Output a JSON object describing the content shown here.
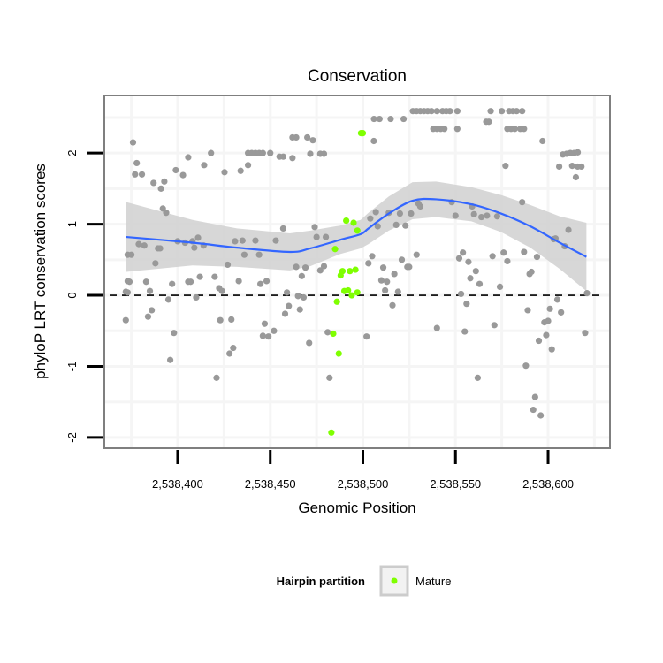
{
  "chart_data": {
    "type": "scatter",
    "title": "Conservation",
    "xlabel": "Genomic Position",
    "ylabel": "phyloP LRT conservation scores",
    "xlim": [
      2538360.4,
      2538633.4
    ],
    "ylim": [
      -2.15,
      2.81
    ],
    "x_ticks": [
      2538400,
      2538450,
      2538500,
      2538550,
      2538600
    ],
    "x_tick_labels": [
      "2,538,400",
      "2,538,450",
      "2,538,500",
      "2,538,550",
      "2,538,600"
    ],
    "y_ticks": [
      -2,
      -1,
      0,
      1,
      2
    ],
    "y_tick_labels": [
      "-2",
      "-1",
      "0",
      "1",
      "2"
    ],
    "grid": true,
    "reference_line": {
      "y": 0,
      "style": "dashed"
    },
    "legend": {
      "title": "Hairpin partition",
      "position": "bottom",
      "entries": [
        {
          "label": "Mature",
          "color": "#7fff00"
        }
      ]
    },
    "colors": {
      "other": "#999999",
      "mature": "#7fff00",
      "smooth": "#3366ff",
      "band": "#d3d3d3",
      "panel_border": "#7f7f7f"
    },
    "series": [
      {
        "name": "Other",
        "points": [
          [
            2538372,
            -0.35
          ],
          [
            2538372,
            0.05
          ],
          [
            2538373,
            0.57
          ],
          [
            2538373,
            0.2
          ],
          [
            2538375.9,
            2.15
          ],
          [
            2538377.9,
            1.86
          ],
          [
            2538377,
            1.7
          ],
          [
            2538380.7,
            1.7
          ],
          [
            2538387,
            1.58
          ],
          [
            2538392.8,
            1.6
          ],
          [
            2538391,
            1.5
          ],
          [
            2538399,
            1.76
          ],
          [
            2538402.9,
            1.69
          ],
          [
            2538405.7,
            1.94
          ],
          [
            2538414.3,
            1.83
          ],
          [
            2538418,
            2.0
          ],
          [
            2538425.3,
            1.73
          ],
          [
            2538434,
            1.75
          ],
          [
            2538438,
            1.83
          ],
          [
            2538438,
            2.0
          ],
          [
            2538440,
            2.0
          ],
          [
            2538442,
            2.0
          ],
          [
            2538444,
            2.0
          ],
          [
            2538446,
            2.0
          ],
          [
            2538450,
            2.0
          ],
          [
            2538455,
            1.95
          ],
          [
            2538457,
            1.95
          ],
          [
            2538462,
            1.93
          ],
          [
            2538462,
            2.22
          ],
          [
            2538464,
            2.22
          ],
          [
            2538470,
            2.22
          ],
          [
            2538473,
            2.18
          ],
          [
            2538471.6,
            1.99
          ],
          [
            2538477,
            1.99
          ],
          [
            2538479,
            1.99
          ],
          [
            2538392,
            1.22
          ],
          [
            2538393.8,
            1.16
          ],
          [
            2538379,
            0.72
          ],
          [
            2538382,
            0.7
          ],
          [
            2538375,
            0.57
          ],
          [
            2538389.4,
            0.66
          ],
          [
            2538390.5,
            0.66
          ],
          [
            2538388,
            0.45
          ],
          [
            2538400,
            0.76
          ],
          [
            2538404,
            0.74
          ],
          [
            2538408,
            0.76
          ],
          [
            2538411,
            0.81
          ],
          [
            2538409,
            0.67
          ],
          [
            2538414,
            0.7
          ],
          [
            2538431,
            0.76
          ],
          [
            2538435,
            0.77
          ],
          [
            2538442,
            0.77
          ],
          [
            2538436,
            0.57
          ],
          [
            2538444,
            0.57
          ],
          [
            2538453,
            0.77
          ],
          [
            2538457,
            0.94
          ],
          [
            2538474,
            0.96
          ],
          [
            2538475,
            0.82
          ],
          [
            2538480,
            0.82
          ],
          [
            2538427,
            0.43
          ],
          [
            2538464,
            0.4
          ],
          [
            2538469,
            0.39
          ],
          [
            2538467,
            0.27
          ],
          [
            2538477,
            0.35
          ],
          [
            2538479,
            0.41
          ],
          [
            2538374,
            0.19
          ],
          [
            2538383,
            0.19
          ],
          [
            2538397,
            0.16
          ],
          [
            2538405.7,
            0.19
          ],
          [
            2538407,
            0.19
          ],
          [
            2538412,
            0.26
          ],
          [
            2538420,
            0.26
          ],
          [
            2538433,
            0.2
          ],
          [
            2538444.7,
            0.16
          ],
          [
            2538448,
            0.2
          ],
          [
            2538373,
            0.04
          ],
          [
            2538385,
            0.06
          ],
          [
            2538422.4,
            0.1
          ],
          [
            2538424,
            0.06
          ],
          [
            2538459,
            0.04
          ],
          [
            2538465,
            -0.01
          ],
          [
            2538468,
            -0.03
          ],
          [
            2538410,
            -0.03
          ],
          [
            2538395,
            -0.06
          ],
          [
            2538384,
            -0.3
          ],
          [
            2538386,
            -0.21
          ],
          [
            2538458,
            -0.26
          ],
          [
            2538460,
            -0.15
          ],
          [
            2538466,
            -0.2
          ],
          [
            2538423,
            -0.35
          ],
          [
            2538429,
            -0.34
          ],
          [
            2538447,
            -0.4
          ],
          [
            2538446,
            -0.57
          ],
          [
            2538449,
            -0.58
          ],
          [
            2538452,
            -0.5
          ],
          [
            2538398,
            -0.53
          ],
          [
            2538471,
            -0.67
          ],
          [
            2538481,
            -0.52
          ],
          [
            2538428,
            -0.82
          ],
          [
            2538430,
            -0.74
          ],
          [
            2538396,
            -0.91
          ],
          [
            2538421,
            -1.16
          ],
          [
            2538482,
            -1.16
          ],
          [
            2538505.9,
            2.17
          ],
          [
            2538506,
            2.48
          ],
          [
            2538509,
            2.48
          ],
          [
            2538515,
            2.48
          ],
          [
            2538522,
            2.48
          ],
          [
            2538527,
            2.59
          ],
          [
            2538529,
            2.59
          ],
          [
            2538531,
            2.59
          ],
          [
            2538533,
            2.59
          ],
          [
            2538535,
            2.59
          ],
          [
            2538537,
            2.59
          ],
          [
            2538540,
            2.59
          ],
          [
            2538543,
            2.59
          ],
          [
            2538545,
            2.59
          ],
          [
            2538547,
            2.59
          ],
          [
            2538551,
            2.59
          ],
          [
            2538569,
            2.59
          ],
          [
            2538575,
            2.59
          ],
          [
            2538579,
            2.59
          ],
          [
            2538581,
            2.59
          ],
          [
            2538583,
            2.59
          ],
          [
            2538586,
            2.59
          ],
          [
            2538566.6,
            2.44
          ],
          [
            2538568,
            2.44
          ],
          [
            2538538,
            2.34
          ],
          [
            2538540,
            2.34
          ],
          [
            2538542,
            2.34
          ],
          [
            2538544,
            2.34
          ],
          [
            2538551,
            2.34
          ],
          [
            2538578,
            2.34
          ],
          [
            2538580,
            2.34
          ],
          [
            2538582,
            2.34
          ],
          [
            2538585,
            2.34
          ],
          [
            2538587,
            2.34
          ],
          [
            2538597,
            2.17
          ],
          [
            2538608,
            1.98
          ],
          [
            2538610,
            1.99
          ],
          [
            2538612,
            2.0
          ],
          [
            2538614,
            2.0
          ],
          [
            2538616,
            2.01
          ],
          [
            2538606,
            1.81
          ],
          [
            2538613,
            1.82
          ],
          [
            2538616,
            1.81
          ],
          [
            2538618,
            1.81
          ],
          [
            2538615,
            1.66
          ],
          [
            2538577,
            1.82
          ],
          [
            2538507,
            1.17
          ],
          [
            2538504,
            1.08
          ],
          [
            2538508,
            0.97
          ],
          [
            2538514,
            1.16
          ],
          [
            2538518,
            0.99
          ],
          [
            2538520,
            1.15
          ],
          [
            2538523,
            0.98
          ],
          [
            2538526,
            1.15
          ],
          [
            2538530,
            1.29
          ],
          [
            2538531,
            1.25
          ],
          [
            2538548,
            1.31
          ],
          [
            2538550,
            1.12
          ],
          [
            2538559,
            1.25
          ],
          [
            2538560,
            1.14
          ],
          [
            2538564,
            1.1
          ],
          [
            2538567,
            1.12
          ],
          [
            2538572.5,
            1.11
          ],
          [
            2538586,
            1.31
          ],
          [
            2538611,
            0.92
          ],
          [
            2538603,
            0.79
          ],
          [
            2538604,
            0.8
          ],
          [
            2538609,
            0.69
          ],
          [
            2538505,
            0.55
          ],
          [
            2538503,
            0.45
          ],
          [
            2538511,
            0.39
          ],
          [
            2538517,
            0.3
          ],
          [
            2538521,
            0.5
          ],
          [
            2538524,
            0.4
          ],
          [
            2538525,
            0.4
          ],
          [
            2538529,
            0.57
          ],
          [
            2538510,
            0.21
          ],
          [
            2538513,
            0.19
          ],
          [
            2538512,
            0.07
          ],
          [
            2538519,
            0.05
          ],
          [
            2538516,
            -0.14
          ],
          [
            2538552,
            0.52
          ],
          [
            2538554,
            0.6
          ],
          [
            2538557,
            0.47
          ],
          [
            2538561,
            0.34
          ],
          [
            2538558,
            0.24
          ],
          [
            2538563,
            0.16
          ],
          [
            2538553,
            0.02
          ],
          [
            2538556,
            -0.12
          ],
          [
            2538570,
            0.55
          ],
          [
            2538576,
            0.6
          ],
          [
            2538578,
            0.48
          ],
          [
            2538574,
            0.12
          ],
          [
            2538587,
            0.61
          ],
          [
            2538594,
            0.54
          ],
          [
            2538590,
            0.3
          ],
          [
            2538591,
            0.33
          ],
          [
            2538540,
            -0.46
          ],
          [
            2538555,
            -0.51
          ],
          [
            2538571,
            -0.42
          ],
          [
            2538502,
            -0.58
          ],
          [
            2538562,
            -1.16
          ],
          [
            2538589,
            -0.21
          ],
          [
            2538605,
            -0.06
          ],
          [
            2538601,
            -0.19
          ],
          [
            2538607,
            -0.24
          ],
          [
            2538598,
            -0.38
          ],
          [
            2538600,
            -0.36
          ],
          [
            2538599,
            -0.56
          ],
          [
            2538595,
            -0.64
          ],
          [
            2538602,
            -0.76
          ],
          [
            2538620,
            -0.53
          ],
          [
            2538621,
            0.03
          ],
          [
            2538588,
            -0.99
          ],
          [
            2538593,
            -1.43
          ],
          [
            2538592,
            -1.61
          ],
          [
            2538596,
            -1.69
          ]
        ]
      },
      {
        "name": "Mature",
        "points": [
          [
            2538499,
            2.28
          ],
          [
            2538500,
            2.28
          ],
          [
            2538491,
            1.05
          ],
          [
            2538495,
            1.02
          ],
          [
            2538497,
            0.91
          ],
          [
            2538485,
            0.65
          ],
          [
            2538488,
            0.28
          ],
          [
            2538489,
            0.34
          ],
          [
            2538493,
            0.34
          ],
          [
            2538496,
            0.36
          ],
          [
            2538490,
            0.06
          ],
          [
            2538492,
            0.07
          ],
          [
            2538494,
            0.0
          ],
          [
            2538497,
            0.04
          ],
          [
            2538486,
            -0.09
          ],
          [
            2538484,
            -0.54
          ],
          [
            2538487,
            -0.82
          ],
          [
            2538483,
            -1.93
          ]
        ]
      }
    ],
    "smooth": {
      "method": "loess",
      "x": [
        2538372.3,
        2538408,
        2538432,
        2538460.6,
        2538471.6,
        2538487.7,
        2538498.8,
        2538503,
        2538514,
        2538526.8,
        2538539.5,
        2538558.6,
        2538574.6,
        2538590.4,
        2538606.3,
        2538620.7
      ],
      "y": [
        0.82,
        0.74,
        0.67,
        0.61,
        0.66,
        0.78,
        0.86,
        0.94,
        1.15,
        1.33,
        1.35,
        1.28,
        1.15,
        0.97,
        0.74,
        0.54
      ],
      "se": [
        0.49,
        0.32,
        0.27,
        0.26,
        0.25,
        0.2,
        0.2,
        0.22,
        0.24,
        0.26,
        0.25,
        0.24,
        0.26,
        0.3,
        0.37,
        0.48
      ]
    }
  }
}
